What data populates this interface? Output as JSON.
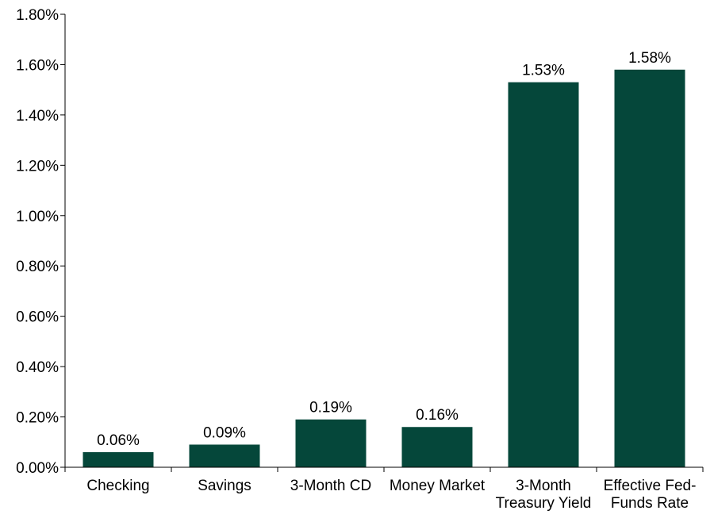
{
  "chart_data": {
    "type": "bar",
    "title": "",
    "xlabel": "",
    "ylabel": "",
    "categories": [
      [
        "Checking"
      ],
      [
        "Savings"
      ],
      [
        "3-Month CD"
      ],
      [
        "Money Market"
      ],
      [
        "3-Month",
        "Treasury Yield"
      ],
      [
        "Effective Fed-",
        "Funds Rate"
      ]
    ],
    "values": [
      0.06,
      0.09,
      0.19,
      0.16,
      1.53,
      1.58
    ],
    "data_labels": [
      "0.06%",
      "0.09%",
      "0.19%",
      "0.16%",
      "1.53%",
      "1.58%"
    ],
    "ylim": [
      0,
      1.8
    ],
    "yticks": [
      0,
      0.2,
      0.4,
      0.6,
      0.8,
      1.0,
      1.2,
      1.4,
      1.6,
      1.8
    ],
    "ytick_labels": [
      "0.00%",
      "0.20%",
      "0.40%",
      "0.60%",
      "0.80%",
      "1.00%",
      "1.20%",
      "1.40%",
      "1.60%",
      "1.80%"
    ],
    "grid": false,
    "legend": "none",
    "bar_color": "#05473a"
  }
}
